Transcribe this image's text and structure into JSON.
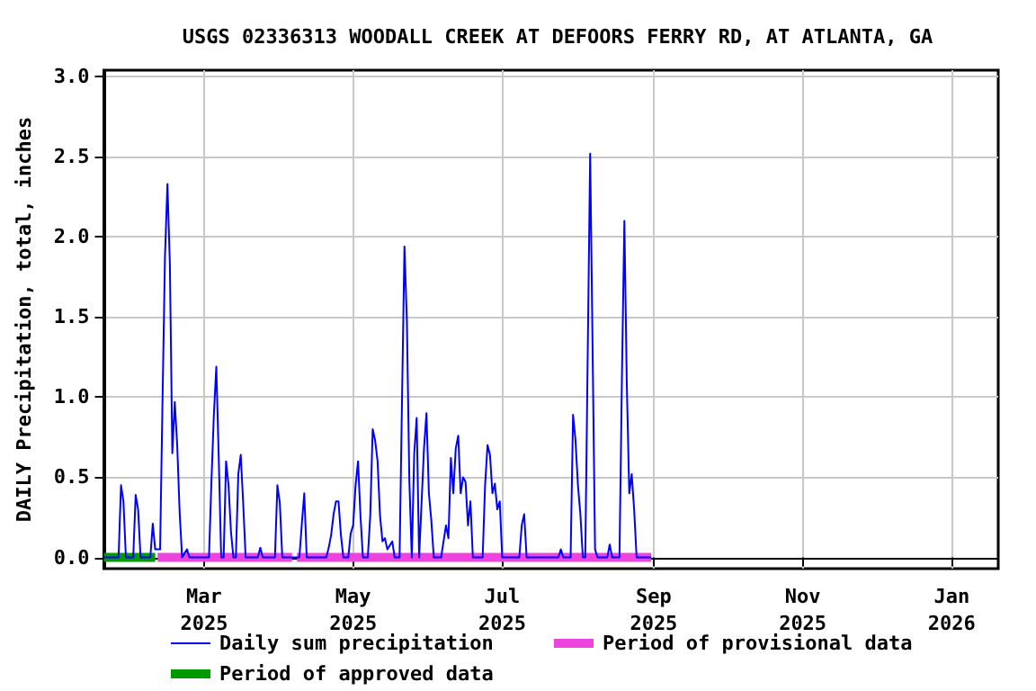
{
  "chart_data": {
    "type": "line",
    "title": "USGS 02336313 WOODALL CREEK AT DEFOORS FERRY RD, AT ATLANTA, GA",
    "ylabel": "DAILY Precipitation, total, inches",
    "series": [
      {
        "name": "Daily sum precipitation",
        "color": "#0000ff",
        "x": [
          "2025-01-19",
          "2025-01-25",
          "2025-01-26",
          "2025-01-27",
          "2025-01-28",
          "2025-01-31",
          "2025-02-01",
          "2025-02-02",
          "2025-02-03",
          "2025-02-07",
          "2025-02-08",
          "2025-02-09",
          "2025-02-11",
          "2025-02-12",
          "2025-02-13",
          "2025-02-14",
          "2025-02-15",
          "2025-02-16",
          "2025-02-17",
          "2025-02-18",
          "2025-02-19",
          "2025-02-20",
          "2025-02-22",
          "2025-02-23",
          "2025-03-03",
          "2025-03-04",
          "2025-03-05",
          "2025-03-06",
          "2025-03-07",
          "2025-03-08",
          "2025-03-09",
          "2025-03-10",
          "2025-03-11",
          "2025-03-12",
          "2025-03-13",
          "2025-03-14",
          "2025-03-15",
          "2025-03-16",
          "2025-03-17",
          "2025-03-18",
          "2025-03-23",
          "2025-03-24",
          "2025-03-25",
          "2025-03-30",
          "2025-03-31",
          "2025-04-01",
          "2025-04-02",
          "2025-04-09",
          "2025-04-10",
          "2025-04-11",
          "2025-04-12",
          "2025-04-20",
          "2025-04-21",
          "2025-04-22",
          "2025-04-23",
          "2025-04-24",
          "2025-04-25",
          "2025-04-26",
          "2025-04-27",
          "2025-04-29",
          "2025-04-30",
          "2025-05-01",
          "2025-05-02",
          "2025-05-03",
          "2025-05-04",
          "2025-05-05",
          "2025-05-07",
          "2025-05-08",
          "2025-05-09",
          "2025-05-10",
          "2025-05-11",
          "2025-05-12",
          "2025-05-13",
          "2025-05-14",
          "2025-05-15",
          "2025-05-17",
          "2025-05-18",
          "2025-05-20",
          "2025-05-21",
          "2025-05-22",
          "2025-05-23",
          "2025-05-24",
          "2025-05-25",
          "2025-05-26",
          "2025-05-27",
          "2025-05-28",
          "2025-05-30",
          "2025-05-31",
          "2025-06-01",
          "2025-06-02",
          "2025-06-03",
          "2025-06-06",
          "2025-06-07",
          "2025-06-08",
          "2025-06-09",
          "2025-06-10",
          "2025-06-11",
          "2025-06-12",
          "2025-06-13",
          "2025-06-14",
          "2025-06-15",
          "2025-06-16",
          "2025-06-17",
          "2025-06-18",
          "2025-06-19",
          "2025-06-23",
          "2025-06-24",
          "2025-06-25",
          "2025-06-26",
          "2025-06-27",
          "2025-06-28",
          "2025-06-29",
          "2025-06-30",
          "2025-07-01",
          "2025-07-08",
          "2025-07-09",
          "2025-07-10",
          "2025-07-11",
          "2025-07-24",
          "2025-07-25",
          "2025-07-26",
          "2025-07-29",
          "2025-07-30",
          "2025-07-31",
          "2025-08-01",
          "2025-08-02",
          "2025-08-03",
          "2025-08-04",
          "2025-08-05",
          "2025-08-06",
          "2025-08-07",
          "2025-08-08",
          "2025-08-09",
          "2025-08-13",
          "2025-08-14",
          "2025-08-15",
          "2025-08-18",
          "2025-08-19",
          "2025-08-20",
          "2025-08-21",
          "2025-08-22",
          "2025-08-23",
          "2025-08-24",
          "2025-08-25",
          "2025-08-31"
        ],
        "values": [
          0,
          0,
          0.45,
          0.35,
          0,
          0,
          0.39,
          0.3,
          0,
          0,
          0.21,
          0.05,
          0.05,
          0.99,
          1.88,
          2.33,
          1.83,
          0.65,
          0.97,
          0.7,
          0.28,
          0,
          0.05,
          0,
          0,
          0.47,
          0.89,
          1.19,
          0.62,
          0,
          0,
          0.6,
          0.45,
          0.16,
          0,
          0,
          0.52,
          0.64,
          0.34,
          0,
          0,
          0.06,
          0,
          0,
          0.45,
          0.34,
          0,
          0,
          0.21,
          0.4,
          0,
          0,
          0.06,
          0.14,
          0.27,
          0.35,
          0.35,
          0.14,
          0,
          0,
          0.15,
          0.2,
          0.45,
          0.6,
          0.26,
          0,
          0,
          0.26,
          0.8,
          0.73,
          0.6,
          0.26,
          0.1,
          0.12,
          0.05,
          0.1,
          0,
          0,
          0.98,
          1.94,
          1.47,
          0.48,
          0,
          0.65,
          0.87,
          0,
          0.68,
          0.9,
          0.4,
          0.23,
          0,
          0,
          0.1,
          0.2,
          0.12,
          0.62,
          0.4,
          0.68,
          0.76,
          0.4,
          0.5,
          0.47,
          0.2,
          0.35,
          0,
          0,
          0.45,
          0.7,
          0.64,
          0.4,
          0.46,
          0.3,
          0.35,
          0,
          0,
          0.2,
          0.27,
          0,
          0,
          0.05,
          0,
          0,
          0.89,
          0.73,
          0.45,
          0.27,
          0,
          0,
          1.27,
          2.52,
          1.3,
          0.05,
          0,
          0,
          0.08,
          0,
          0,
          1.12,
          2.1,
          1.08,
          0.4,
          0.52,
          0.3,
          0,
          0
        ]
      },
      {
        "name": "Period of provisional data",
        "color": "#ee44dd",
        "x": [
          "2025-02-10",
          "2025-04-06",
          "2025-04-07",
          "2025-04-08",
          "2025-08-31"
        ],
        "values": [
          0,
          0,
          null,
          0,
          0
        ]
      },
      {
        "name": "Period of approved data",
        "color": "#009900",
        "x": [
          "2025-01-19",
          "2025-02-09"
        ],
        "values": [
          0,
          0
        ]
      }
    ],
    "xlim": [
      "2025-01-19",
      "2026-01-20"
    ],
    "xticks": [
      {
        "value": "2025-03-01",
        "label": "Mar\n2025"
      },
      {
        "value": "2025-05-01",
        "label": "May\n2025"
      },
      {
        "value": "2025-07-01",
        "label": "Jul\n2025"
      },
      {
        "value": "2025-09-01",
        "label": "Sep\n2025"
      },
      {
        "value": "2025-11-01",
        "label": "Nov\n2025"
      },
      {
        "value": "2026-01-01",
        "label": "Jan\n2026"
      }
    ],
    "ylim": [
      -0.07,
      3.04
    ],
    "yticks": [
      {
        "value": 0,
        "label": "0.0"
      },
      {
        "value": 0.5,
        "label": "0.5"
      },
      {
        "value": 1,
        "label": "1.0"
      },
      {
        "value": 1.5,
        "label": "1.5"
      },
      {
        "value": 2,
        "label": "2.0"
      },
      {
        "value": 2.5,
        "label": "2.5"
      },
      {
        "value": 3,
        "label": "3.0"
      }
    ],
    "grid": true,
    "legend": "bottom",
    "marker": "none",
    "line_style": "solid"
  }
}
